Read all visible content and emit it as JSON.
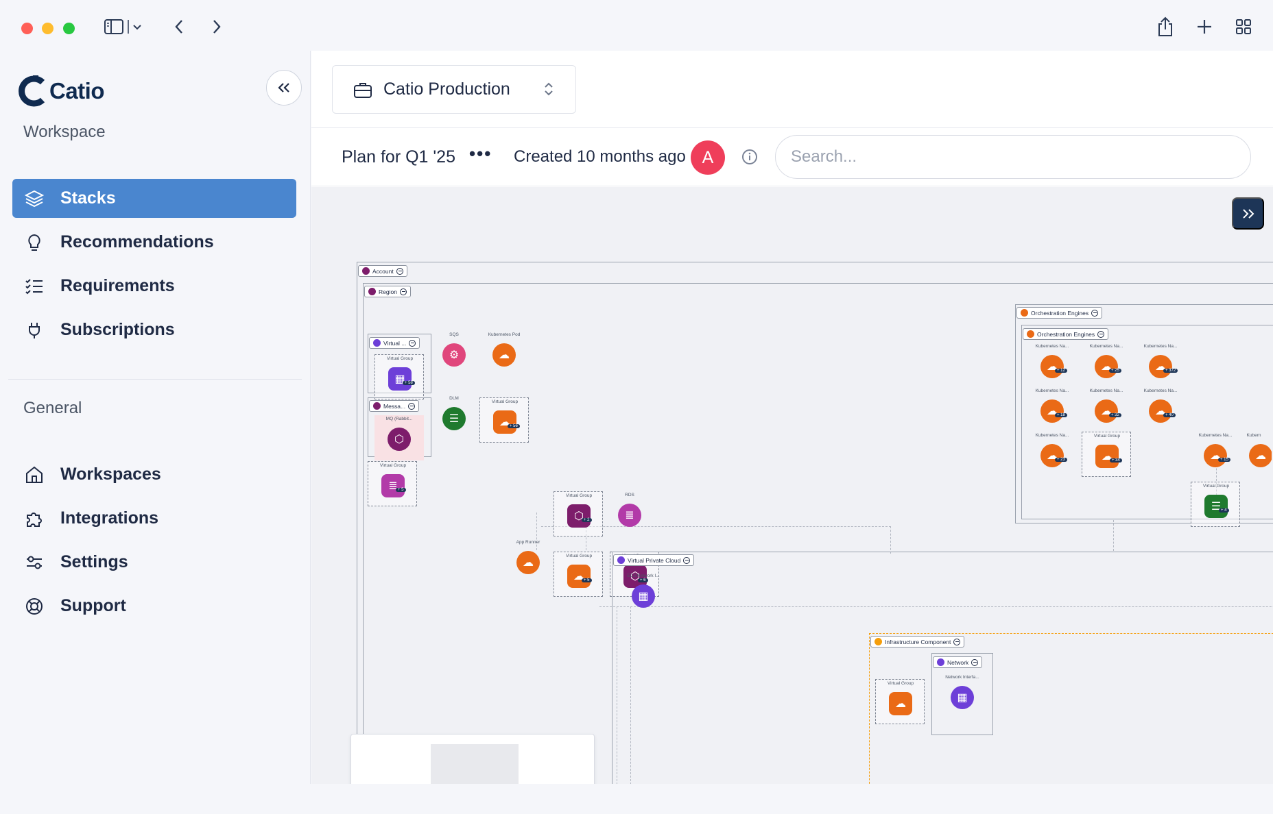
{
  "window": {
    "traffic_colors": [
      "#ff5f57",
      "#febc2e",
      "#28c840"
    ]
  },
  "sidebar": {
    "brand": "Catio",
    "workspace_heading": "Workspace",
    "general_heading": "General",
    "workspace_items": [
      {
        "label": "Stacks",
        "icon": "stack-layers-icon",
        "active": true
      },
      {
        "label": "Recommendations",
        "icon": "lightbulb-icon",
        "active": false
      },
      {
        "label": "Requirements",
        "icon": "checklist-icon",
        "active": false
      },
      {
        "label": "Subscriptions",
        "icon": "plug-icon",
        "active": false
      }
    ],
    "general_items": [
      {
        "label": "Workspaces",
        "icon": "home-icon"
      },
      {
        "label": "Integrations",
        "icon": "puzzle-icon"
      },
      {
        "label": "Settings",
        "icon": "sliders-icon"
      },
      {
        "label": "Support",
        "icon": "lifebuoy-icon"
      }
    ],
    "accent": "#4a86cf"
  },
  "header": {
    "org_name": "Catio Production",
    "plan_title": "Plan for Q1 '25",
    "more": "•••",
    "created": "Created 10 months ago",
    "avatar_letter": "A",
    "search_placeholder": "Search..."
  },
  "diagram": {
    "account_label": "Account",
    "region_label": "Region",
    "virtual_label": "Virtual ...",
    "messaging_label": "Messa...",
    "mq_label": "MQ (Rabbit...",
    "orch_outer_label": "Orchestration Engines",
    "orch_inner_label": "Orchestration Engines",
    "vpc_label": "Virtual Private Cloud",
    "infra_label": "Infrastructure Component",
    "network_label": "Network",
    "nodes": {
      "virtual_group": "Virtual Group",
      "sqs": "SQS",
      "k8s_pod": "Kubernetes Pod",
      "dlm": "DLM",
      "rds": "RDS",
      "app_runner": "App Runner",
      "ec2_network": "EC2 Network I...",
      "k8s_ns": "Kubernetes Na...",
      "network_iface": "Network Interfa...",
      "k8s_cut": "Kubern"
    },
    "badges": {
      "vg1": "+ 58",
      "vg2": "+ 56",
      "vg3": "+ 5",
      "vg4": "+ 2",
      "vg5": "+ 5",
      "vg6": "+ 6",
      "vg7": "+ 4",
      "k1": "+ 12",
      "k2": "+ 25",
      "k3": "+ 372",
      "k4": "+ 18",
      "k5": "+ 32",
      "k6": "+ 40",
      "k7": "+ 23",
      "k8": "+ 34",
      "k9": "+ 15"
    },
    "colors": {
      "orange": "#ea6a16",
      "purple": "#6d3fd8",
      "magenta": "#b23aa8",
      "pink": "#e0467c",
      "green": "#1f7a2e",
      "plum": "#7d1d6b",
      "navy": "#1d3557"
    }
  }
}
